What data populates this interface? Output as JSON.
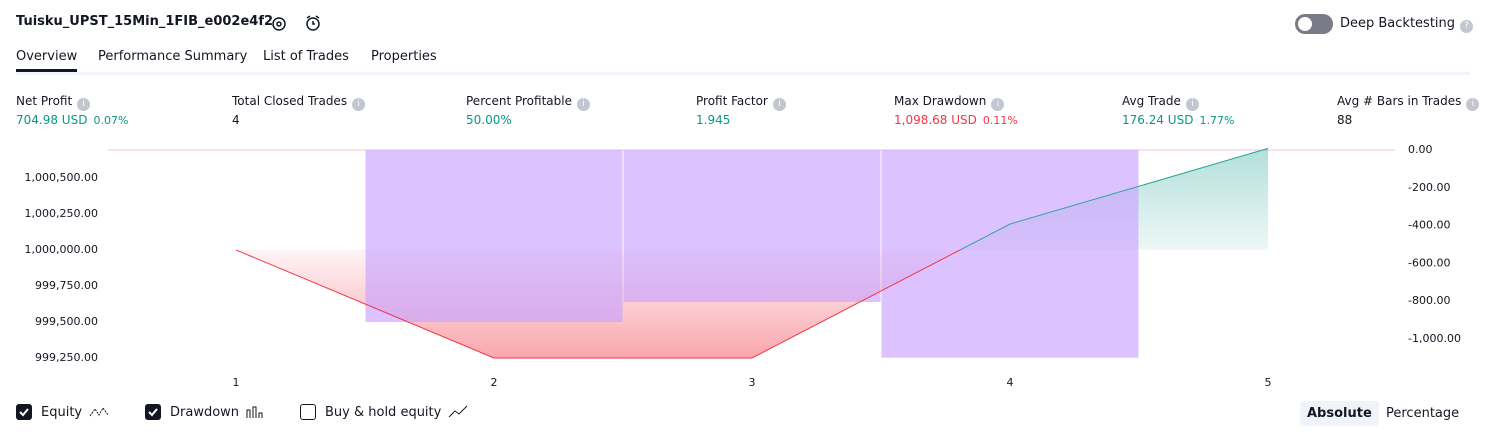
{
  "header": {
    "title": "Tuisku_UPST_15Min_1FIB_e002e4f2",
    "toggle": "Deep Backtesting"
  },
  "tabs": [
    "Overview",
    "Performance Summary",
    "List of Trades",
    "Properties"
  ],
  "metrics": [
    {
      "label": "Net Profit",
      "value": "704.98 USD",
      "pct": "0.07%",
      "color": "#089981"
    },
    {
      "label": "Total Closed Trades",
      "value": "4",
      "color": "#131722"
    },
    {
      "label": "Percent Profitable",
      "value": "50.00%",
      "color": "#089981"
    },
    {
      "label": "Profit Factor",
      "value": "1.945",
      "color": "#089981"
    },
    {
      "label": "Max Drawdown",
      "value": "1,098.68 USD",
      "pct": "0.11%",
      "color": "#f23645"
    },
    {
      "label": "Avg Trade",
      "value": "176.24 USD",
      "pct": "1.77%",
      "color": "#089981"
    },
    {
      "label": "Avg # Bars in Trades",
      "value": "88",
      "color": "#131722"
    }
  ],
  "chart_data": {
    "type": "line",
    "categories": [
      "1",
      "2",
      "3",
      "4",
      "5"
    ],
    "series": [
      {
        "name": "Equity",
        "color": "#f23645",
        "color_up": "#26a69a",
        "values": [
          1000000,
          999250,
          999250,
          1000180,
          1000705
        ]
      },
      {
        "name": "Drawdown",
        "color": "#c9a2ff",
        "axis": "y2",
        "values": [
          null,
          -910,
          -804,
          -1098.68,
          null
        ]
      }
    ],
    "ylim": [
      999236,
      1000694
    ],
    "yticks": [
      {
        "value": 1000500,
        "label": "1,000,500.00"
      },
      {
        "value": 1000250,
        "label": "1,000,250.00"
      },
      {
        "value": 1000000,
        "label": "1,000,000.00"
      },
      {
        "value": 999750,
        "label": "999,750.00"
      },
      {
        "value": 999500,
        "label": "999,500.00"
      },
      {
        "value": 999250,
        "label": "999,250.00"
      }
    ],
    "y2lim": [
      -1111,
      0
    ],
    "y2ticks": [
      {
        "value": 0,
        "label": "0.00"
      },
      {
        "value": -200,
        "label": "-200.00"
      },
      {
        "value": -400,
        "label": "-400.00"
      },
      {
        "value": -600,
        "label": "-600.00"
      },
      {
        "value": -800,
        "label": "-800.00"
      },
      {
        "value": -1000,
        "label": "-1,000.00"
      }
    ],
    "baseline": 1000000
  },
  "footer": {
    "checkboxes": [
      {
        "label": "Equity",
        "checked": true
      },
      {
        "label": "Drawdown",
        "checked": true
      },
      {
        "label": "Buy & hold equity",
        "checked": false
      }
    ],
    "buttons": [
      {
        "label": "Absolute",
        "active": true
      },
      {
        "label": "Percentage",
        "active": false
      }
    ]
  }
}
